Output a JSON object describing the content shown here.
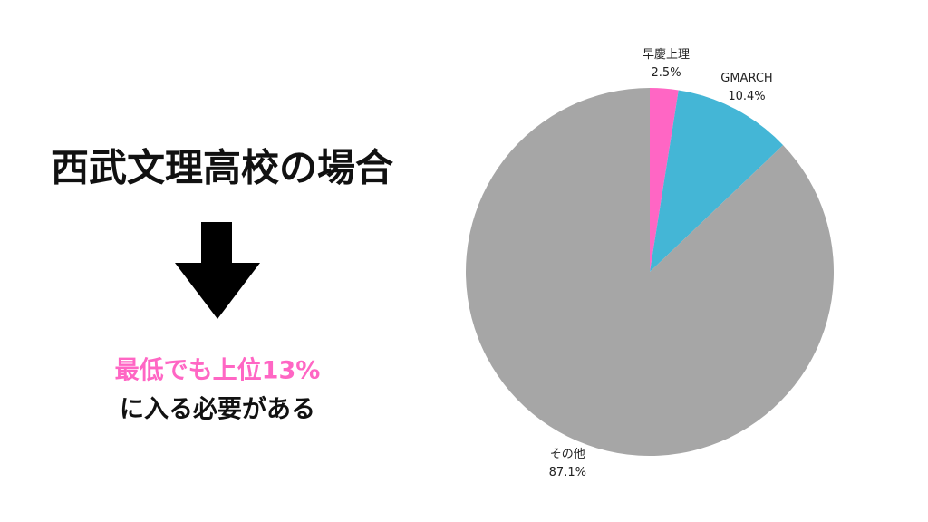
{
  "slide": {
    "heading": "西武文理高校の場合",
    "highlight": "最低でも上位13%",
    "subtext": "に入る必要がある"
  },
  "chart_data": {
    "type": "pie",
    "categories": [
      "早慶上理",
      "GMARCH",
      "その他"
    ],
    "values": [
      2.5,
      10.4,
      87.1
    ],
    "value_labels": [
      "2.5%",
      "10.4%",
      "87.1%"
    ],
    "colors": [
      "#ff66c4",
      "#44b6d6",
      "#a6a6a6"
    ]
  }
}
